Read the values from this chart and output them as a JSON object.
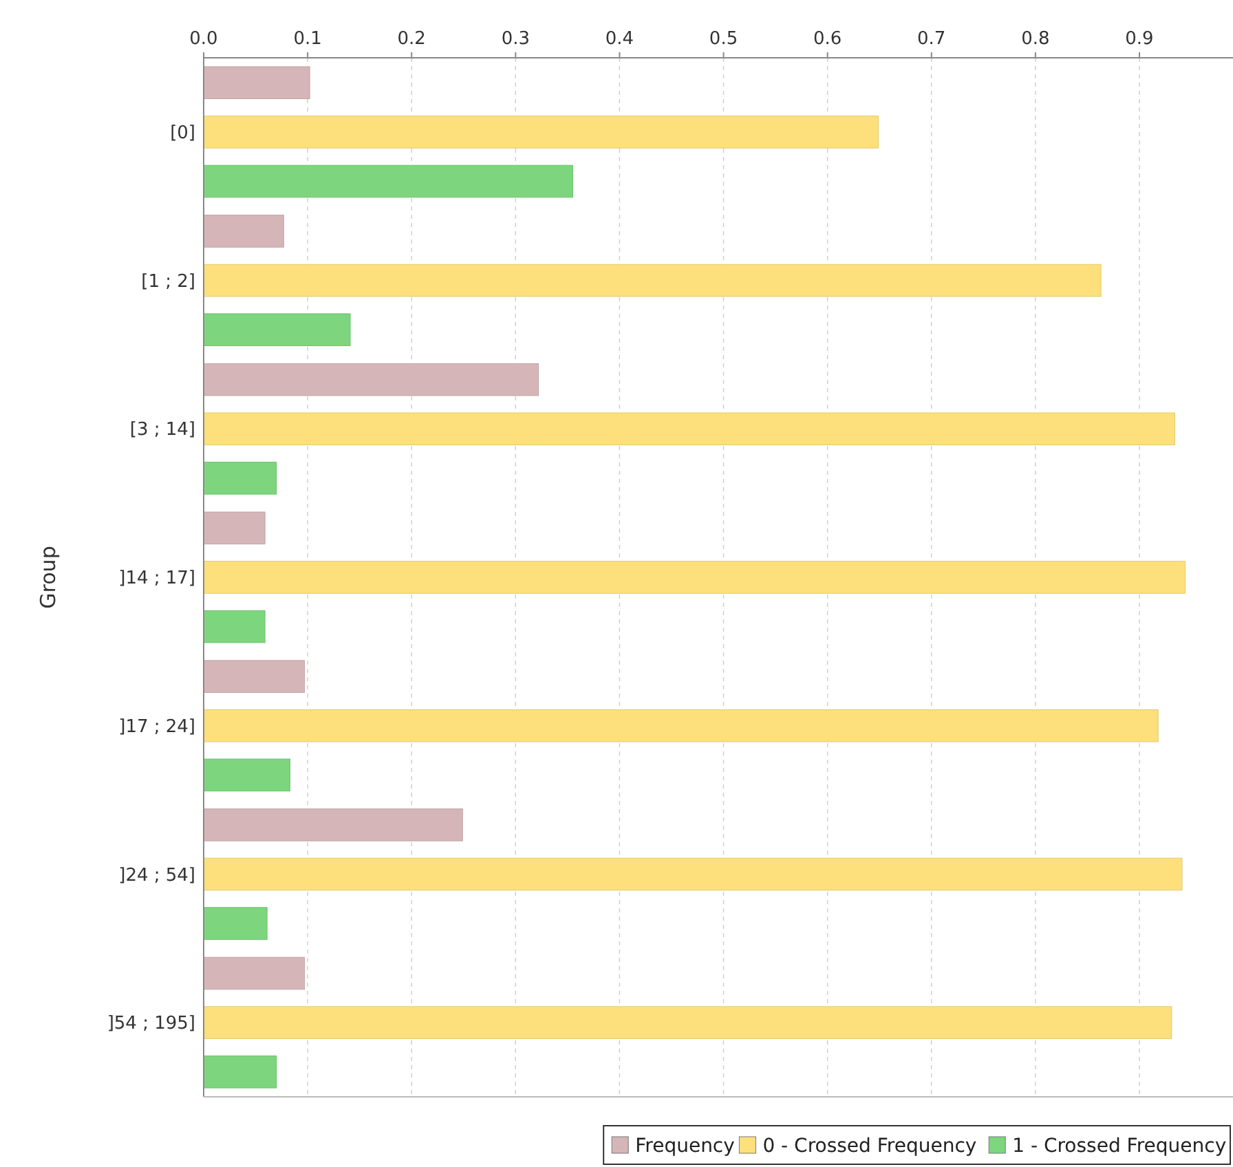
{
  "chart_data": {
    "type": "bar",
    "orientation": "horizontal",
    "ylabel": "Group",
    "categories": [
      "[0]",
      "[1 ; 2]",
      "[3 ; 14]",
      "]14 ; 17]",
      "]17 ; 24]",
      "]24 ; 54]",
      "]54 ; 195]"
    ],
    "series": [
      {
        "name": "Frequency",
        "color": "#d6b5b8",
        "values": [
          0.102,
          0.077,
          0.322,
          0.059,
          0.097,
          0.249,
          0.097
        ]
      },
      {
        "name": "0 - Crossed Frequency",
        "color": "#fde07c",
        "values": [
          0.649,
          0.863,
          0.934,
          0.944,
          0.918,
          0.941,
          0.931
        ]
      },
      {
        "name": "1 - Crossed Frequency",
        "color": "#7dd67d",
        "values": [
          0.355,
          0.141,
          0.07,
          0.059,
          0.083,
          0.061,
          0.07
        ]
      }
    ],
    "xlim": [
      0,
      0.99
    ],
    "xticks": [
      {
        "value": 0,
        "label": "0.0"
      },
      0.1,
      0.2,
      0.3,
      0.4,
      0.5,
      0.6,
      0.7,
      0.8,
      0.9
    ],
    "grid": "x",
    "legend": "bottom"
  }
}
